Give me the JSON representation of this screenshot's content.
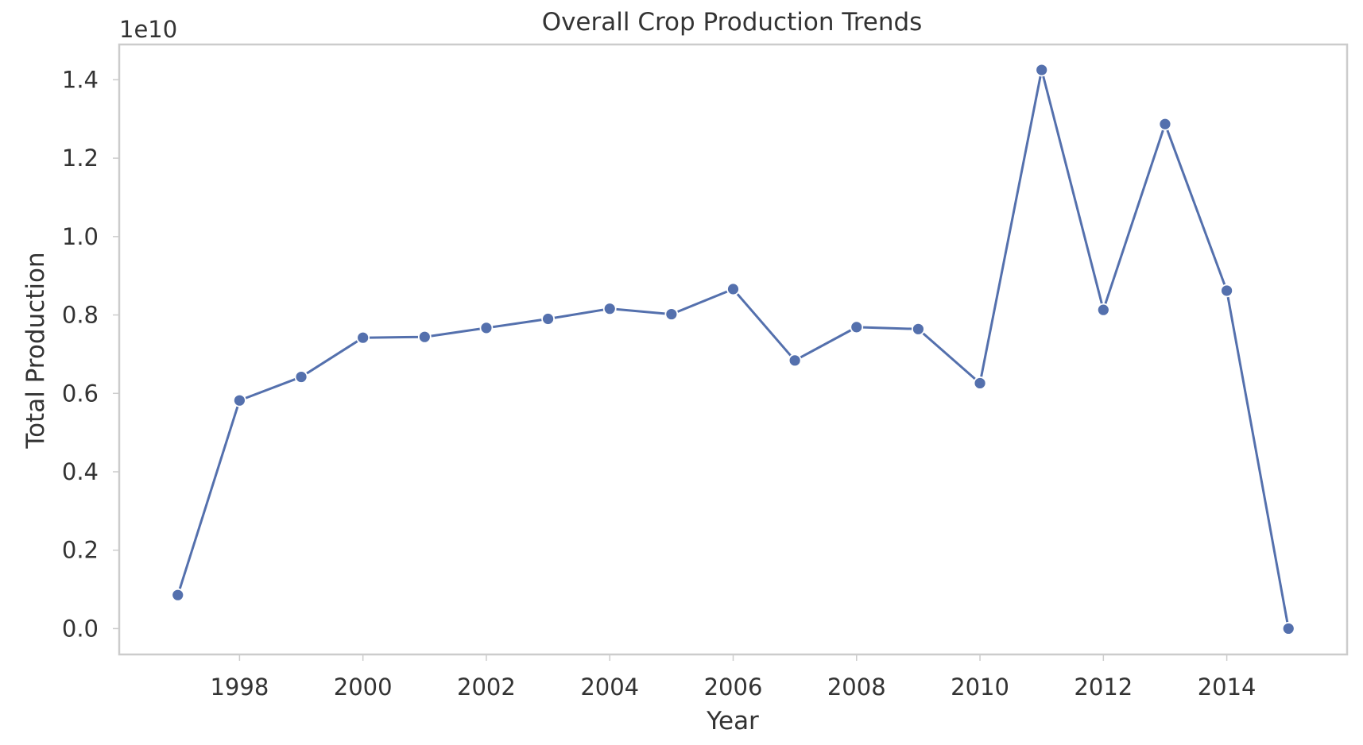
{
  "chart_data": {
    "type": "line",
    "title": "Overall Crop Production Trends",
    "xlabel": "Year",
    "ylabel": "Total Production",
    "offset_text": "1e10",
    "x": [
      1997,
      1998,
      1999,
      2000,
      2001,
      2002,
      2003,
      2004,
      2005,
      2006,
      2007,
      2008,
      2009,
      2010,
      2011,
      2012,
      2013,
      2014,
      2015
    ],
    "series": [
      {
        "name": "",
        "values": [
          856000000.0,
          5820000000.0,
          6420000000.0,
          7420000000.0,
          7440000000.0,
          7670000000.0,
          7900000000.0,
          8160000000.0,
          8020000000.0,
          8660000000.0,
          6840000000.0,
          7690000000.0,
          7640000000.0,
          6260000000.0,
          14250000000.0,
          8130000000.0,
          12870000000.0,
          8620000000.0,
          0.0
        ],
        "color": "#5470AD"
      }
    ],
    "xlim": [
      1996.05,
      2015.95
    ],
    "ylim": [
      -660000000.0,
      14900000000.0
    ],
    "xticks": [
      1998,
      2000,
      2002,
      2004,
      2006,
      2008,
      2010,
      2012,
      2014
    ],
    "xtick_labels": [
      "1998",
      "2000",
      "2002",
      "2004",
      "2006",
      "2008",
      "2010",
      "2012",
      "2014"
    ],
    "yticks": [
      0,
      2000000000.0,
      4000000000.0,
      6000000000.0,
      8000000000.0,
      10000000000.0,
      12000000000.0,
      14000000000.0
    ],
    "ytick_labels": [
      "0.0",
      "0.2",
      "0.4",
      "0.6",
      "0.8",
      "1.0",
      "1.2",
      "1.4"
    ],
    "grid": false,
    "legend": "none"
  }
}
